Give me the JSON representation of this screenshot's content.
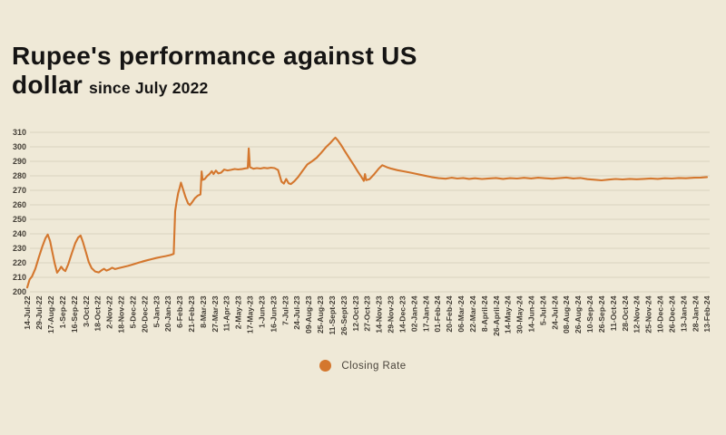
{
  "page": {
    "background": "#EFE9D7"
  },
  "title": {
    "text": "Rupee's performance against US dollar since July 2022",
    "line1": "Rupee's performance against US",
    "line2": "dollar",
    "suffix": "since July 2022"
  },
  "legend": {
    "label": "Closing Rate"
  },
  "chart_data": {
    "type": "line",
    "title": "Rupee's performance against US dollar since July 2022",
    "series_name": "Closing Rate",
    "xlabel": "",
    "ylabel": "",
    "ylim": [
      200,
      310
    ],
    "yticks": [
      200,
      210,
      220,
      230,
      240,
      250,
      260,
      270,
      280,
      290,
      300,
      310
    ],
    "grid": "horizontal",
    "legend_position": "bottom-center",
    "line_color": "#D4772E",
    "grid_color": "#D9D3BF",
    "axis_text_color": "#433E36",
    "x_unit": "category_index",
    "categories": [
      "14-Jul-22",
      "29-Jul-22",
      "17-Aug-22",
      "1-Sep-22",
      "16-Sep-22",
      "3-Oct-22",
      "18-Oct-22",
      "2-Nov-22",
      "18-Nov-22",
      "5-Dec-22",
      "20-Dec-22",
      "5-Jan-23",
      "20-Jan-23",
      "6-Feb-23",
      "21-Feb-23",
      "8-Mar-23",
      "27-Mar-23",
      "11-Apr-23",
      "2-May-23",
      "17-May-23",
      "1-Jun-23",
      "16-Jun-23",
      "7-Jul-23",
      "24-Jul-23",
      "09-Aug-23",
      "25-Aug-23",
      "11-Sept-23",
      "26-Sept-23",
      "12-Oct-23",
      "27-Oct-23",
      "14-Nov-23",
      "29-Nov-23",
      "14-Dec-23",
      "02-Jan-24",
      "17-Jan-24",
      "01-Feb-24",
      "20-Feb-24",
      "06-Mar-24",
      "22-Mar-24",
      "8-April-24",
      "26-April-24",
      "14-May-24",
      "30-May-24",
      "14-Jun-24",
      "5-Jul-24",
      "24-Jul-24",
      "08-Aug-24",
      "26-Aug-24",
      "10-Sep-24",
      "26-Sep-24",
      "11-Oct-24",
      "28-Oct-24",
      "12-Nov-24",
      "25-Nov-24",
      "10-Dec-24",
      "26-Dec-24",
      "13-Jan-24",
      "28-Jan-24",
      "13-Feb-24"
    ],
    "series": [
      {
        "name": "Closing Rate",
        "points": [
          [
            0,
            203
          ],
          [
            0.2,
            208.5
          ],
          [
            0.4,
            210.5
          ],
          [
            0.7,
            216
          ],
          [
            1.0,
            224
          ],
          [
            1.3,
            231.5
          ],
          [
            1.55,
            236.8
          ],
          [
            1.75,
            239.5
          ],
          [
            1.95,
            235
          ],
          [
            2.15,
            227
          ],
          [
            2.35,
            219.5
          ],
          [
            2.55,
            213.2
          ],
          [
            2.75,
            215.3
          ],
          [
            2.9,
            217.3
          ],
          [
            3.1,
            215.2
          ],
          [
            3.25,
            214.3
          ],
          [
            3.5,
            219
          ],
          [
            3.8,
            226.5
          ],
          [
            4.1,
            233.5
          ],
          [
            4.35,
            237.5
          ],
          [
            4.55,
            238.8
          ],
          [
            4.75,
            234.5
          ],
          [
            5.0,
            227.5
          ],
          [
            5.25,
            220.5
          ],
          [
            5.5,
            216.3
          ],
          [
            5.8,
            214
          ],
          [
            6.1,
            213.4
          ],
          [
            6.35,
            214.9
          ],
          [
            6.55,
            215.9
          ],
          [
            6.75,
            214.6
          ],
          [
            7.0,
            215.4
          ],
          [
            7.25,
            216.6
          ],
          [
            7.5,
            215.7
          ],
          [
            7.8,
            216.3
          ],
          [
            8.2,
            217.1
          ],
          [
            8.6,
            217.9
          ],
          [
            9.0,
            218.8
          ],
          [
            9.4,
            219.8
          ],
          [
            9.8,
            220.8
          ],
          [
            10.2,
            221.7
          ],
          [
            10.6,
            222.5
          ],
          [
            11.0,
            223.3
          ],
          [
            11.4,
            224.0
          ],
          [
            11.8,
            224.6
          ],
          [
            12.2,
            225.3
          ],
          [
            12.5,
            226.2
          ],
          [
            12.62,
            255.5
          ],
          [
            12.75,
            262.5
          ],
          [
            12.88,
            268.0
          ],
          [
            13.0,
            271.5
          ],
          [
            13.12,
            275.3
          ],
          [
            13.3,
            270.5
          ],
          [
            13.5,
            265.5
          ],
          [
            13.72,
            261.0
          ],
          [
            13.88,
            259.8
          ],
          [
            14.05,
            261.5
          ],
          [
            14.3,
            264.5
          ],
          [
            14.55,
            266.3
          ],
          [
            14.78,
            267.2
          ],
          [
            14.88,
            283.0
          ],
          [
            14.96,
            277.2
          ],
          [
            15.15,
            277.8
          ],
          [
            15.35,
            279.8
          ],
          [
            15.55,
            281.2
          ],
          [
            15.75,
            283.2
          ],
          [
            15.9,
            281.2
          ],
          [
            16.1,
            283.6
          ],
          [
            16.3,
            281.6
          ],
          [
            16.55,
            282.2
          ],
          [
            16.8,
            284.3
          ],
          [
            17.1,
            283.7
          ],
          [
            17.4,
            284.1
          ],
          [
            17.7,
            284.7
          ],
          [
            18.0,
            284.4
          ],
          [
            18.3,
            284.6
          ],
          [
            18.6,
            285.1
          ],
          [
            18.82,
            285.3
          ],
          [
            18.9,
            298.9
          ],
          [
            19.0,
            286.0
          ],
          [
            19.3,
            284.9
          ],
          [
            19.6,
            285.3
          ],
          [
            19.9,
            285.0
          ],
          [
            20.2,
            285.5
          ],
          [
            20.5,
            285.2
          ],
          [
            20.8,
            285.6
          ],
          [
            21.1,
            285.3
          ],
          [
            21.4,
            284.0
          ],
          [
            21.7,
            276.0
          ],
          [
            21.9,
            274.6
          ],
          [
            22.1,
            277.8
          ],
          [
            22.3,
            274.9
          ],
          [
            22.5,
            274.3
          ],
          [
            22.8,
            276.3
          ],
          [
            23.1,
            279.0
          ],
          [
            23.5,
            283.5
          ],
          [
            23.9,
            287.8
          ],
          [
            24.3,
            290.0
          ],
          [
            24.7,
            292.5
          ],
          [
            25.1,
            296.0
          ],
          [
            25.5,
            299.8
          ],
          [
            25.85,
            302.5
          ],
          [
            26.1,
            304.8
          ],
          [
            26.3,
            306.3
          ],
          [
            26.5,
            304.5
          ],
          [
            26.8,
            301.0
          ],
          [
            27.1,
            297.0
          ],
          [
            27.5,
            292.0
          ],
          [
            27.9,
            287.0
          ],
          [
            28.2,
            283.0
          ],
          [
            28.5,
            279.5
          ],
          [
            28.72,
            276.5
          ],
          [
            28.82,
            281.2
          ],
          [
            28.92,
            277.0
          ],
          [
            29.2,
            277.6
          ],
          [
            29.6,
            281.0
          ],
          [
            30.0,
            285.0
          ],
          [
            30.3,
            287.3
          ],
          [
            30.7,
            285.9
          ],
          [
            31.1,
            284.9
          ],
          [
            31.6,
            283.9
          ],
          [
            32.1,
            283.1
          ],
          [
            32.7,
            282.2
          ],
          [
            33.3,
            281.2
          ],
          [
            33.9,
            280.1
          ],
          [
            34.5,
            279.1
          ],
          [
            35.1,
            278.4
          ],
          [
            35.7,
            278.0
          ],
          [
            36.2,
            278.7
          ],
          [
            36.7,
            278.1
          ],
          [
            37.2,
            278.5
          ],
          [
            37.7,
            277.9
          ],
          [
            38.2,
            278.3
          ],
          [
            38.8,
            277.8
          ],
          [
            39.4,
            278.2
          ],
          [
            40.0,
            278.5
          ],
          [
            40.6,
            277.9
          ],
          [
            41.2,
            278.4
          ],
          [
            41.8,
            278.1
          ],
          [
            42.4,
            278.6
          ],
          [
            43.0,
            278.2
          ],
          [
            43.6,
            278.7
          ],
          [
            44.2,
            278.3
          ],
          [
            44.8,
            278.0
          ],
          [
            45.4,
            278.4
          ],
          [
            46.0,
            278.8
          ],
          [
            46.6,
            278.2
          ],
          [
            47.2,
            278.5
          ],
          [
            47.8,
            277.7
          ],
          [
            48.4,
            277.3
          ],
          [
            49.0,
            276.9
          ],
          [
            49.6,
            277.4
          ],
          [
            50.2,
            277.8
          ],
          [
            50.8,
            277.5
          ],
          [
            51.4,
            277.9
          ],
          [
            52.0,
            277.6
          ],
          [
            52.6,
            277.9
          ],
          [
            53.2,
            278.2
          ],
          [
            53.8,
            277.9
          ],
          [
            54.4,
            278.3
          ],
          [
            55.0,
            278.1
          ],
          [
            55.6,
            278.5
          ],
          [
            56.2,
            278.3
          ],
          [
            56.9,
            278.7
          ],
          [
            57.5,
            278.8
          ],
          [
            58,
            279.1
          ]
        ]
      }
    ]
  }
}
